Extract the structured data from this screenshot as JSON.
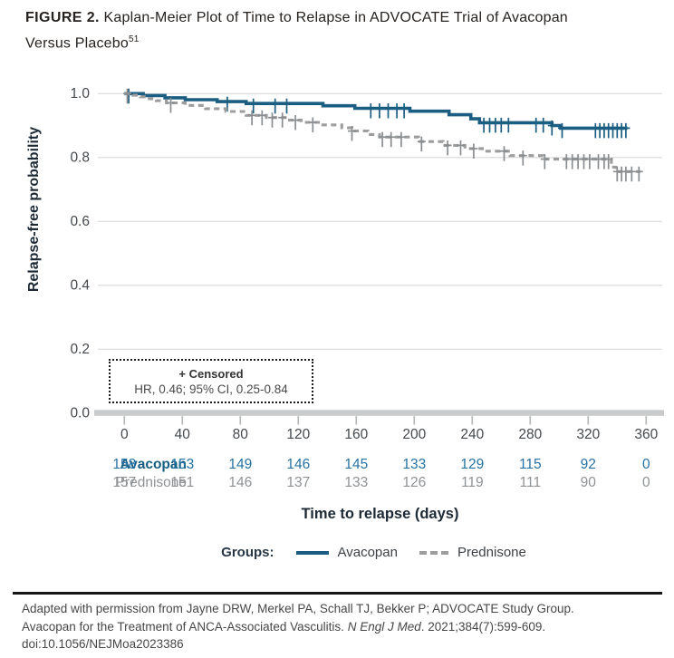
{
  "title": {
    "label": "FIGURE 2.",
    "line1": "Kaplan-Meier Plot of Time to Relapse in ADVOCATE Trial of Avacopan",
    "line2": "Versus Placebo",
    "superscript": "51"
  },
  "annotation": {
    "censored_label": "+ Censored",
    "hr_text": "HR, 0.46; 95% CI, 0.25-0.84"
  },
  "footer": {
    "line1": "Adapted with permission from Jayne DRW, Merkel PA, Schall TJ, Bekker P; ADVOCATE Study Group.",
    "line2_pre": "Avacopan for the Treatment of ANCA-Associated Vasculitis. ",
    "line2_italic": "N Engl J Med",
    "line2_post": ". 2021;384(7):599-609.",
    "line3": "doi:10.1056/NEJMoa2023386"
  },
  "colors": {
    "avacopan": "#1b5e81",
    "prednisone": "#9d9d9d",
    "prednisone_censor": "#8a8d90",
    "risk_label_blue": "#175d80",
    "risk_number_blue": "#2672a4",
    "risk_gray": "#8f9295",
    "grid": "#d9d9d9",
    "axis_bar": "#c9cacb",
    "axis_tick": "#b9babb",
    "tick_label": "#45494d"
  },
  "chart_data": {
    "type": "line",
    "subtype": "kaplan-meier-step",
    "title": "",
    "xlabel": "Time to relapse (days)",
    "ylabel": "Relapse-free probability",
    "xlim": [
      -18,
      372
    ],
    "ylim": [
      0.0,
      1.0
    ],
    "grid": "horizontal",
    "xticks": [
      0,
      40,
      80,
      120,
      160,
      200,
      240,
      280,
      320,
      360
    ],
    "yticks": [
      {
        "label": "1.0",
        "value": 1.0
      },
      {
        "label": "0.8",
        "value": 0.8
      },
      {
        "label": "0.6",
        "value": 0.6
      },
      {
        "label": "0.4",
        "value": 0.4
      },
      {
        "label": "0.2",
        "value": 0.2
      },
      {
        "label": "0.0",
        "value": 0.0
      }
    ],
    "legend": {
      "label": "Groups:",
      "entries": [
        "Avacopan",
        "Prednisone"
      ],
      "position": "bottom"
    },
    "series": [
      {
        "name": "Avacopan",
        "style": "solid",
        "steps": [
          [
            0,
            1.0
          ],
          [
            13,
            0.994
          ],
          [
            28,
            0.987
          ],
          [
            42,
            0.981
          ],
          [
            64,
            0.975
          ],
          [
            84,
            0.969
          ],
          [
            137,
            0.962
          ],
          [
            159,
            0.954
          ],
          [
            197,
            0.945
          ],
          [
            224,
            0.934
          ],
          [
            239,
            0.921
          ],
          [
            245,
            0.909
          ],
          [
            295,
            0.9
          ],
          [
            301,
            0.892
          ],
          [
            347,
            0.892
          ]
        ],
        "censor_days": [
          3,
          71,
          89,
          104,
          112,
          170,
          176,
          182,
          188,
          193,
          248,
          252,
          256,
          260,
          265,
          284,
          289,
          295,
          302,
          325,
          328,
          331,
          334,
          337,
          340,
          343,
          346
        ]
      },
      {
        "name": "Prednisone",
        "style": "dashed",
        "steps": [
          [
            0,
            1.0
          ],
          [
            6,
            0.995
          ],
          [
            11,
            0.99
          ],
          [
            16,
            0.984
          ],
          [
            22,
            0.978
          ],
          [
            29,
            0.971
          ],
          [
            42,
            0.963
          ],
          [
            56,
            0.953
          ],
          [
            70,
            0.944
          ],
          [
            84,
            0.932
          ],
          [
            98,
            0.925
          ],
          [
            112,
            0.917
          ],
          [
            122,
            0.91
          ],
          [
            135,
            0.902
          ],
          [
            150,
            0.893
          ],
          [
            157,
            0.883
          ],
          [
            168,
            0.872
          ],
          [
            176,
            0.864
          ],
          [
            203,
            0.85
          ],
          [
            220,
            0.838
          ],
          [
            235,
            0.828
          ],
          [
            247,
            0.82
          ],
          [
            266,
            0.806
          ],
          [
            289,
            0.795
          ],
          [
            336,
            0.77
          ],
          [
            339,
            0.756
          ],
          [
            356,
            0.756
          ]
        ],
        "censor_days": [
          2,
          32,
          88,
          95,
          102,
          109,
          118,
          130,
          157,
          178,
          184,
          191,
          205,
          223,
          232,
          241,
          262,
          275,
          290,
          305,
          309,
          313,
          317,
          321,
          327,
          331,
          334,
          340,
          343,
          346,
          350,
          355
        ]
      }
    ],
    "at_risk": {
      "days": [
        0,
        40,
        80,
        120,
        160,
        200,
        240,
        280,
        320,
        360
      ],
      "rows": [
        {
          "name": "Avacopan",
          "counts": [
            158,
            153,
            149,
            146,
            145,
            133,
            129,
            115,
            92,
            0
          ]
        },
        {
          "name": "Prednisone",
          "counts": [
            157,
            151,
            146,
            137,
            133,
            126,
            119,
            111,
            90,
            0
          ]
        }
      ]
    }
  }
}
